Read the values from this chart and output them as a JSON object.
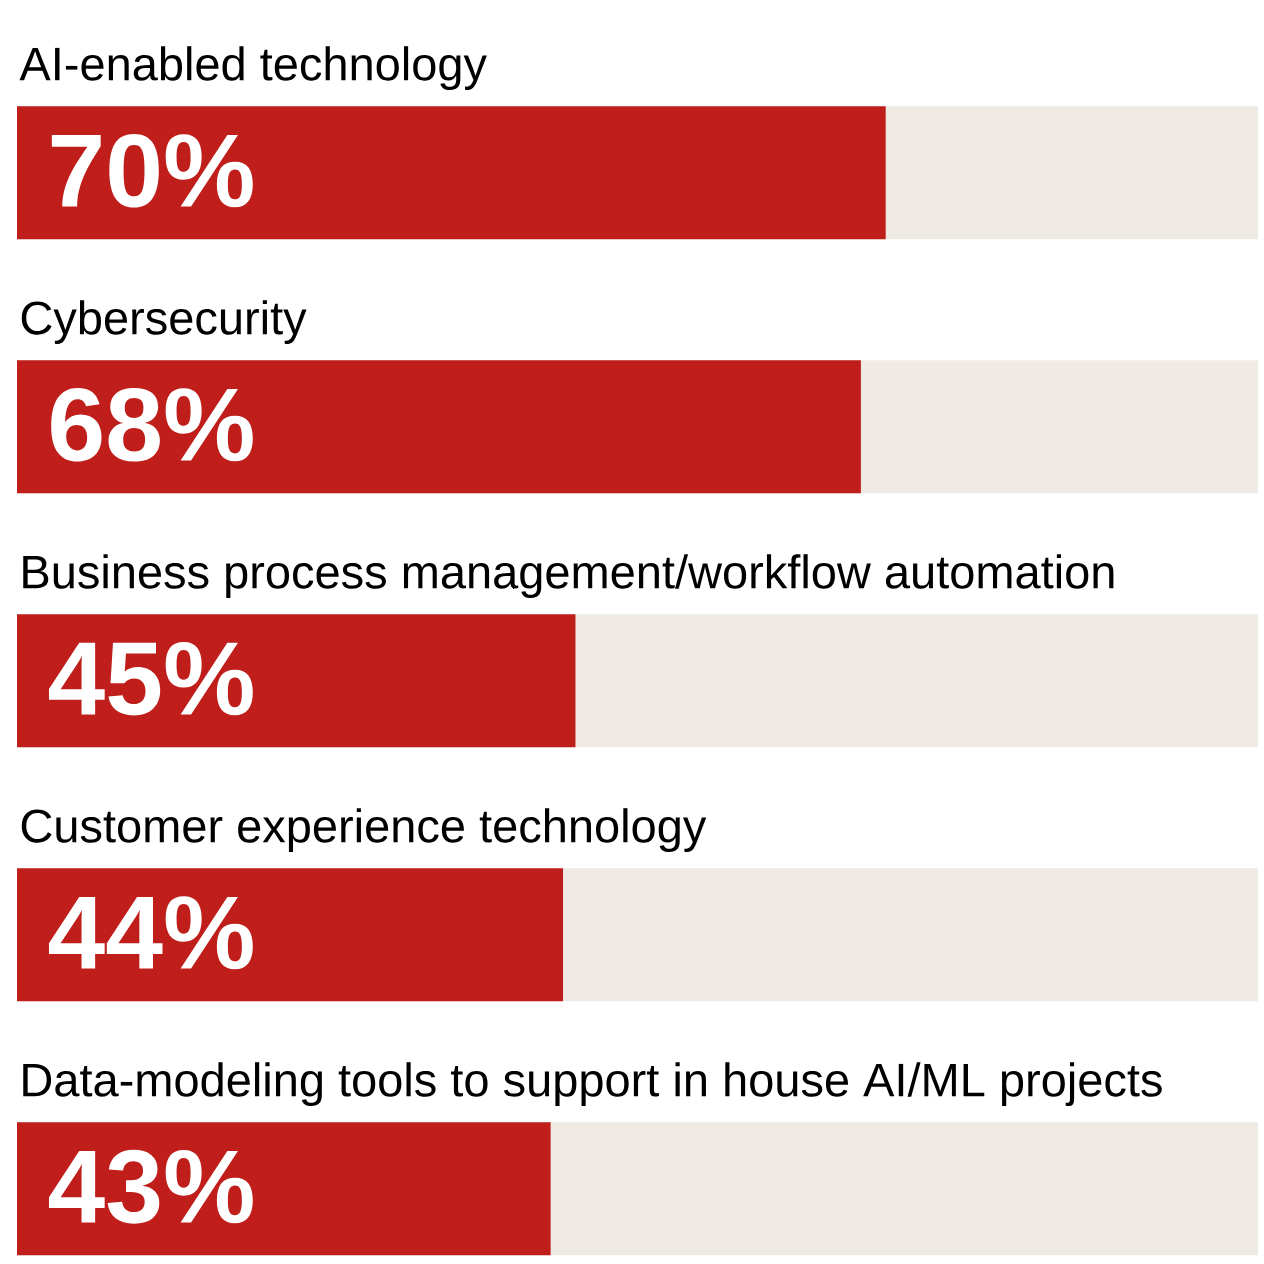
{
  "chart_data": {
    "type": "bar",
    "orientation": "horizontal",
    "categories": [
      "AI-enabled technology",
      "Cybersecurity",
      "Business process management/workflow automation",
      "Customer experience technology",
      "Data-modeling tools to support in house AI/ML projects"
    ],
    "values": [
      70,
      68,
      45,
      44,
      43
    ],
    "value_labels": [
      "70%",
      "68%",
      "45%",
      "44%",
      "43%"
    ],
    "color": "#bf1e1a",
    "xlim": [
      0,
      100
    ]
  }
}
